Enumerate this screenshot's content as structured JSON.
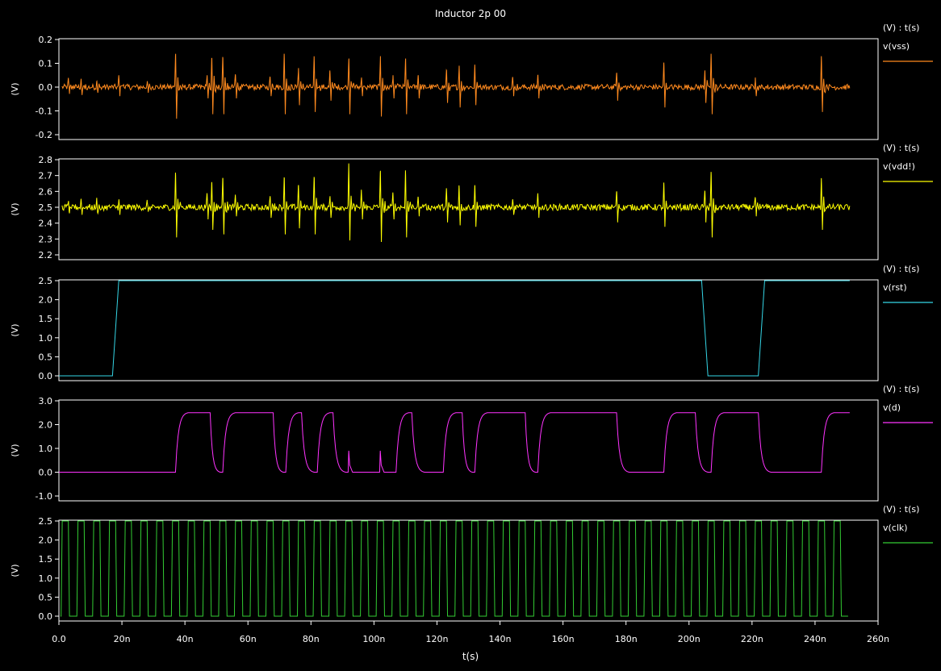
{
  "title": "Inductor 2p 00",
  "xlabel": "t(s)",
  "x_ticks": [
    "0.0",
    "20n",
    "40n",
    "60n",
    "80n",
    "100n",
    "120n",
    "140n",
    "160n",
    "180n",
    "200n",
    "220n",
    "240n",
    "260n"
  ],
  "panel_header": "(V) : t(s)",
  "ylabel": "(V)",
  "chart_data": [
    {
      "type": "line",
      "series": [
        {
          "name": "v(vss)",
          "color": "#ff8a1e"
        }
      ],
      "ylim": [
        -0.2,
        0.2
      ],
      "y_ticks": [
        "0.2",
        "0.1",
        "0.0",
        "-0.1",
        "-0.2"
      ],
      "xlim": [
        0,
        260
      ],
      "x_unit": "ns",
      "baseline": 0.0,
      "noise": 0.012,
      "spikes": [
        [
          3,
          0.03
        ],
        [
          7,
          0.035
        ],
        [
          12,
          0.025
        ],
        [
          19,
          0.04
        ],
        [
          28,
          0.025
        ],
        [
          37,
          0.14
        ],
        [
          47,
          0.05
        ],
        [
          48.5,
          0.12
        ],
        [
          52,
          0.12
        ],
        [
          56,
          0.05
        ],
        [
          67,
          0.04
        ],
        [
          71.5,
          0.12
        ],
        [
          76,
          0.08
        ],
        [
          81,
          0.11
        ],
        [
          86,
          0.06
        ],
        [
          92,
          0.12
        ],
        [
          96,
          0.04
        ],
        [
          102,
          0.13
        ],
        [
          106,
          0.05
        ],
        [
          110,
          0.12
        ],
        [
          114,
          0.05
        ],
        [
          123,
          0.07
        ],
        [
          127,
          0.09
        ],
        [
          132,
          0.08
        ],
        [
          144,
          0.04
        ],
        [
          152,
          0.05
        ],
        [
          177,
          0.06
        ],
        [
          192,
          0.09
        ],
        [
          205,
          0.07
        ],
        [
          207,
          0.12
        ],
        [
          221,
          0.04
        ],
        [
          242,
          0.11
        ]
      ]
    },
    {
      "type": "line",
      "series": [
        {
          "name": "v(vdd!)",
          "color": "#ffff00"
        }
      ],
      "ylim": [
        2.2,
        2.8
      ],
      "y_ticks": [
        "2.8",
        "2.7",
        "2.6",
        "2.5",
        "2.4",
        "2.3",
        "2.2"
      ],
      "xlim": [
        0,
        260
      ],
      "x_unit": "ns",
      "baseline": 2.5,
      "noise": 0.02,
      "spikes": [
        [
          3,
          0.04
        ],
        [
          7,
          0.05
        ],
        [
          12,
          0.04
        ],
        [
          19,
          0.05
        ],
        [
          28,
          0.03
        ],
        [
          37,
          0.2
        ],
        [
          47,
          0.08
        ],
        [
          48.5,
          0.15
        ],
        [
          52,
          0.18
        ],
        [
          56,
          0.06
        ],
        [
          67,
          0.07
        ],
        [
          71.5,
          0.18
        ],
        [
          76,
          0.14
        ],
        [
          81,
          0.18
        ],
        [
          86,
          0.07
        ],
        [
          92,
          0.22
        ],
        [
          96,
          0.08
        ],
        [
          102,
          0.23
        ],
        [
          106,
          0.08
        ],
        [
          110,
          0.2
        ],
        [
          114,
          0.06
        ],
        [
          123,
          0.1
        ],
        [
          127,
          0.12
        ],
        [
          132,
          0.13
        ],
        [
          144,
          0.05
        ],
        [
          152,
          0.07
        ],
        [
          177,
          0.1
        ],
        [
          192,
          0.13
        ],
        [
          205,
          0.1
        ],
        [
          207,
          0.2
        ],
        [
          221,
          0.06
        ],
        [
          242,
          0.15
        ]
      ]
    },
    {
      "type": "line",
      "series": [
        {
          "name": "v(rst)",
          "color": "#35d6e6"
        }
      ],
      "ylim": [
        -0.1,
        2.6
      ],
      "y_ticks": [
        "2.5",
        "2.0",
        "1.5",
        "1.0",
        "0.5",
        "0.0"
      ],
      "xlim": [
        0,
        260
      ],
      "x_unit": "ns",
      "x": [
        0,
        17,
        19,
        204,
        206,
        222,
        224,
        251
      ],
      "y": [
        0,
        0,
        2.5,
        2.5,
        0,
        0,
        2.5,
        2.5
      ]
    },
    {
      "type": "line",
      "series": [
        {
          "name": "v(d)",
          "color": "#ff33ff"
        }
      ],
      "ylim": [
        -1.0,
        3.0
      ],
      "y_ticks": [
        "3.0",
        "2.0",
        "1.0",
        "0.0",
        "-1.0"
      ],
      "xlim": [
        0,
        260
      ],
      "x_unit": "ns",
      "high": 2.5,
      "low": 0.0,
      "rises": [
        37,
        52,
        72,
        82,
        107,
        122,
        132,
        152,
        192,
        207,
        242
      ],
      "falls": [
        48,
        68,
        77,
        87,
        112,
        128,
        148,
        177,
        202,
        222
      ],
      "glitches": [
        [
          92,
          0.9
        ],
        [
          102,
          0.9
        ]
      ],
      "end": 251
    },
    {
      "type": "line",
      "series": [
        {
          "name": "v(clk)",
          "color": "#33cc33"
        }
      ],
      "ylim": [
        -0.1,
        2.6
      ],
      "y_ticks": [
        "2.5",
        "2.0",
        "1.5",
        "1.0",
        "0.5",
        "0.0"
      ],
      "xlim": [
        0,
        260
      ],
      "x_unit": "ns",
      "period": 5,
      "high": 2.5,
      "low": 0.0,
      "end": 249
    }
  ]
}
